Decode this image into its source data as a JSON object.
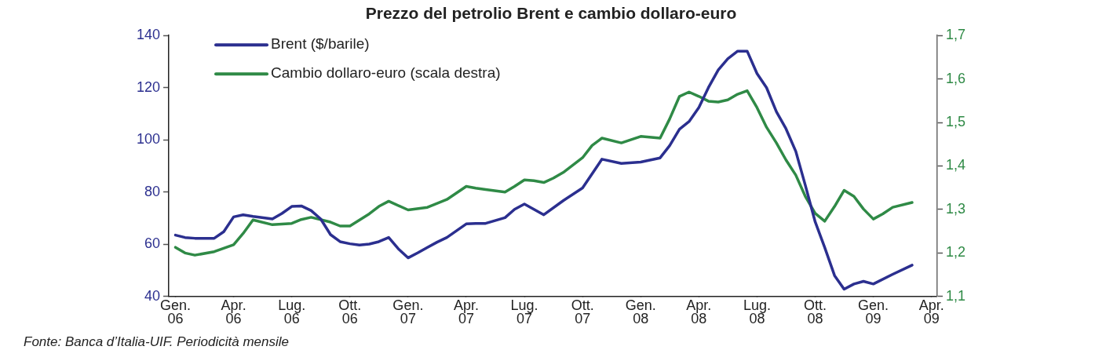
{
  "chart_data": {
    "type": "line",
    "title": "Prezzo del petrolio Brent e cambio dollaro-euro",
    "annotations": [
      "Fonte: Banca d’Italia-UIF. Periodicità mensile"
    ],
    "legend": "top left",
    "grid": false,
    "xlim": [
      "2005-12-21",
      "2009-04-10"
    ],
    "xticks": [
      {
        "value": "2006-01",
        "label": "Gen.\n06"
      },
      {
        "value": "2006-04",
        "label": "Apr.\n06"
      },
      {
        "value": "2006-07",
        "label": "Lug.\n06"
      },
      {
        "value": "2006-10",
        "label": "Ott.\n06"
      },
      {
        "value": "2007-01",
        "label": "Gen.\n07"
      },
      {
        "value": "2007-04",
        "label": "Apr.\n07"
      },
      {
        "value": "2007-07",
        "label": "Lug.\n07"
      },
      {
        "value": "2007-10",
        "label": "Ott.\n07"
      },
      {
        "value": "2008-01",
        "label": "Gen.\n08"
      },
      {
        "value": "2008-04",
        "label": "Apr.\n08"
      },
      {
        "value": "2008-07",
        "label": "Lug.\n08"
      },
      {
        "value": "2008-10",
        "label": "Ott.\n08"
      },
      {
        "value": "2009-01",
        "label": "Gen.\n09"
      },
      {
        "value": "2009-04",
        "label": "Apr.\n09"
      }
    ],
    "ylim": [
      40,
      140
    ],
    "yticks": [
      40,
      60,
      80,
      100,
      120,
      140
    ],
    "y2lim": [
      1.1,
      1.7
    ],
    "y2ticks": [
      {
        "value": 1.1,
        "label": "1,1"
      },
      {
        "value": 1.2,
        "label": "1,2"
      },
      {
        "value": 1.3,
        "label": "1,3"
      },
      {
        "value": 1.4,
        "label": "1,4"
      },
      {
        "value": 1.5,
        "label": "1,5"
      },
      {
        "value": 1.6,
        "label": "1,6"
      },
      {
        "value": 1.7,
        "label": "1,7"
      }
    ],
    "series": [
      {
        "name": "Brent ($/barile)",
        "color": "#2b2f8f",
        "x": [
          "2006-01-01",
          "2006-01-16",
          "2006-02-01",
          "2006-03-01",
          "2006-03-16",
          "2006-04-01",
          "2006-04-16",
          "2006-05-01",
          "2006-06-01",
          "2006-06-16",
          "2006-07-01",
          "2006-07-16",
          "2006-08-01",
          "2006-08-16",
          "2006-09-01",
          "2006-09-16",
          "2006-10-01",
          "2006-10-16",
          "2006-11-01",
          "2006-11-16",
          "2006-12-01",
          "2006-12-16",
          "2007-01-01",
          "2007-01-16",
          "2007-02-01",
          "2007-02-16",
          "2007-03-01",
          "2007-04-01",
          "2007-04-16",
          "2007-05-01",
          "2007-06-01",
          "2007-06-16",
          "2007-07-01",
          "2007-07-16",
          "2007-08-01",
          "2007-09-01",
          "2007-10-01",
          "2007-10-16",
          "2007-11-01",
          "2007-12-01",
          "2008-01-01",
          "2008-02-01",
          "2008-02-16",
          "2008-03-01",
          "2008-03-16",
          "2008-04-01",
          "2008-04-16",
          "2008-05-01",
          "2008-05-16",
          "2008-06-01",
          "2008-06-16",
          "2008-07-01",
          "2008-07-16",
          "2008-08-01",
          "2008-08-16",
          "2008-09-01",
          "2008-09-16",
          "2008-10-01",
          "2008-10-16",
          "2008-11-01",
          "2008-11-16",
          "2008-12-01",
          "2008-12-16",
          "2009-01-01",
          "2009-02-01",
          "2009-03-01"
        ],
        "values": [
          63.5,
          62.6,
          62.3,
          62.3,
          64.8,
          70.5,
          71.3,
          70.7,
          69.7,
          71.8,
          74.5,
          74.7,
          72.9,
          69.7,
          63.7,
          61.0,
          60.2,
          59.7,
          60.1,
          61.0,
          62.6,
          58.3,
          54.8,
          56.7,
          58.8,
          60.8,
          62.6,
          67.8,
          68.0,
          68.0,
          70.2,
          73.4,
          75.4,
          73.4,
          71.3,
          76.7,
          81.6,
          87.0,
          92.6,
          91.0,
          91.5,
          93.1,
          97.8,
          104.1,
          107.0,
          112.4,
          120.0,
          126.8,
          131.1,
          134.0,
          134.0,
          125.4,
          120.0,
          110.8,
          104.3,
          95.6,
          82.6,
          68.6,
          58.8,
          48.0,
          42.8,
          44.8,
          45.8,
          44.8,
          48.5,
          52.0
        ]
      },
      {
        "name": "Cambio dollaro-euro (scala destra)",
        "color": "#2f8a46",
        "axis": "y2",
        "x": [
          "2006-01-01",
          "2006-01-16",
          "2006-02-01",
          "2006-03-01",
          "2006-04-01",
          "2006-04-16",
          "2006-05-01",
          "2006-06-01",
          "2006-07-01",
          "2006-07-16",
          "2006-08-01",
          "2006-09-01",
          "2006-09-16",
          "2006-10-01",
          "2006-11-01",
          "2006-11-16",
          "2006-12-01",
          "2007-01-01",
          "2007-02-01",
          "2007-03-01",
          "2007-04-01",
          "2007-04-16",
          "2007-05-01",
          "2007-06-01",
          "2007-06-16",
          "2007-07-01",
          "2007-07-16",
          "2007-08-01",
          "2007-08-16",
          "2007-09-01",
          "2007-10-01",
          "2007-10-16",
          "2007-11-01",
          "2007-12-01",
          "2008-01-01",
          "2008-02-01",
          "2008-02-16",
          "2008-03-01",
          "2008-03-16",
          "2008-04-01",
          "2008-04-16",
          "2008-05-01",
          "2008-05-16",
          "2008-06-01",
          "2008-06-16",
          "2008-07-01",
          "2008-07-16",
          "2008-08-01",
          "2008-08-16",
          "2008-09-01",
          "2008-09-16",
          "2008-10-01",
          "2008-10-16",
          "2008-11-01",
          "2008-11-16",
          "2008-12-01",
          "2008-12-16",
          "2009-01-01",
          "2009-01-16",
          "2009-02-01",
          "2009-03-01"
        ],
        "values": [
          1.213,
          1.2,
          1.195,
          1.203,
          1.219,
          1.245,
          1.276,
          1.265,
          1.268,
          1.277,
          1.282,
          1.271,
          1.262,
          1.262,
          1.29,
          1.307,
          1.319,
          1.299,
          1.305,
          1.323,
          1.353,
          1.349,
          1.346,
          1.34,
          1.353,
          1.368,
          1.366,
          1.362,
          1.372,
          1.385,
          1.419,
          1.447,
          1.464,
          1.453,
          1.468,
          1.464,
          1.508,
          1.56,
          1.57,
          1.56,
          1.549,
          1.547,
          1.552,
          1.565,
          1.573,
          1.534,
          1.489,
          1.453,
          1.414,
          1.379,
          1.33,
          1.291,
          1.273,
          1.307,
          1.344,
          1.33,
          1.301,
          1.278,
          1.29,
          1.305,
          1.316
        ]
      }
    ]
  }
}
